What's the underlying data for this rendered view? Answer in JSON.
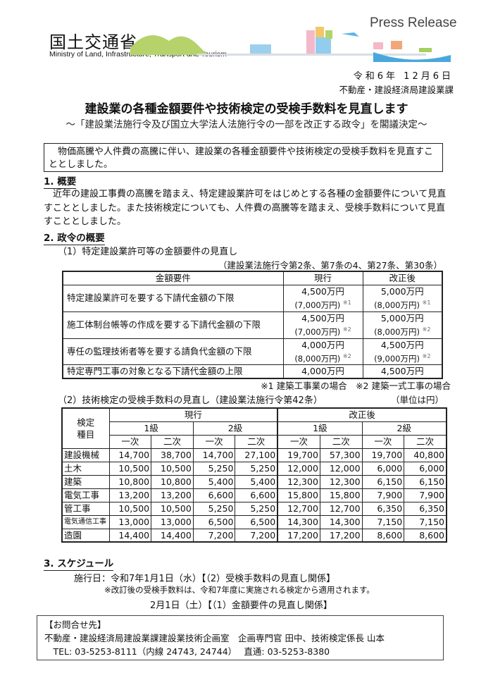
{
  "header": {
    "ministry_jp": "国土交通省",
    "ministry_en": "Ministry of Land, Infrastructure, Transport and Tourism",
    "press_release": "Press Release",
    "date": "令和6年 12月6日",
    "department": "不動産・建設経済局建設業課"
  },
  "title": "建設業の各種金額要件や技術検定の受検手数料を見直します",
  "subtitle": "～「建設業法施行令及び国立大学法人法施行令の一部を改正する政令」を閣議決定～",
  "intro": "　物価高騰や人件費の高騰に伴い、建設業の各種金額要件や技術検定の受検手数料を見直すこととしました。",
  "section1": {
    "heading": "1. 概要",
    "body": "近年の建設工事費の高騰を踏まえ、特定建設業許可をはじめとする各種の金額要件について見直すこととしました。また技術検定についても、人件費の高騰等を踏まえ、受検手数料について見直すこととしました。"
  },
  "section2": {
    "heading": "2. 政令の概要",
    "sub1": "（1）特定建設業許可等の金額要件の見直し",
    "sub1_ref": "（建設業法施行令第2条、第7条の4、第27条、第30条）",
    "table1": {
      "headers": [
        "金額要件",
        "現行",
        "改正後"
      ],
      "rows": [
        {
          "label": "特定建設業許可を要する下請代金額の下限",
          "cur": "4,500万円",
          "cur_sub": "(7,000万円)",
          "cur_note": "※1",
          "new": "5,000万円",
          "new_sub": "(8,000万円)",
          "new_note": "※1"
        },
        {
          "label": "施工体制台帳等の作成を要する下請代金額の下限",
          "cur": "4,500万円",
          "cur_sub": "(7,000万円)",
          "cur_note": "※2",
          "new": "5,000万円",
          "new_sub": "(8,000万円)",
          "new_note": "※2"
        },
        {
          "label": "専任の監理技術者等を要する請負代金額の下限",
          "cur": "4,000万円",
          "cur_sub": "(8,000万円)",
          "cur_note": "※2",
          "new": "4,500万円",
          "new_sub": "(9,000万円)",
          "new_note": "※2"
        },
        {
          "label": "特定専門工事の対象となる下請代金額の上限",
          "cur": "4,000万円",
          "new": "4,500万円"
        }
      ]
    },
    "notes": "※1 建築工事業の場合　※2 建築一式工事の場合",
    "sub2": "（2）技術検定の受検手数料の見直し（建設業法施行令第42条）",
    "unit": "（単位は円）",
    "table2": {
      "corner": "検定\n種目",
      "groups": [
        "現行",
        "改正後"
      ],
      "grades": [
        "1級",
        "2級",
        "1級",
        "2級"
      ],
      "stages": [
        "一次",
        "二次",
        "一次",
        "二次",
        "一次",
        "二次",
        "一次",
        "二次"
      ],
      "rows": [
        {
          "name": "建設機械",
          "values": [
            "14,700",
            "38,700",
            "14,700",
            "27,100",
            "19,700",
            "57,300",
            "19,700",
            "40,800"
          ]
        },
        {
          "name": "土木",
          "values": [
            "10,500",
            "10,500",
            "5,250",
            "5,250",
            "12,000",
            "12,000",
            "6,000",
            "6,000"
          ]
        },
        {
          "name": "建築",
          "values": [
            "10,800",
            "10,800",
            "5,400",
            "5,400",
            "12,300",
            "12,300",
            "6,150",
            "6,150"
          ]
        },
        {
          "name": "電気工事",
          "values": [
            "13,200",
            "13,200",
            "6,600",
            "6,600",
            "15,800",
            "15,800",
            "7,900",
            "7,900"
          ]
        },
        {
          "name": "管工事",
          "values": [
            "10,500",
            "10,500",
            "5,250",
            "5,250",
            "12,700",
            "12,700",
            "6,350",
            "6,350"
          ]
        },
        {
          "name": "電気通信工事",
          "values": [
            "13,000",
            "13,000",
            "6,500",
            "6,500",
            "14,300",
            "14,300",
            "7,150",
            "7,150"
          ]
        },
        {
          "name": "造園",
          "values": [
            "14,400",
            "14,400",
            "7,200",
            "7,200",
            "17,200",
            "17,200",
            "8,600",
            "8,600"
          ]
        }
      ]
    }
  },
  "section3": {
    "heading": "3. スケジュール",
    "line1": "施行日：令和7年1月1日（水）【（2）受検手数料の見直し関係】",
    "note": "※改訂後の受検手数料は、令和7年度に実施される検定から適用されます。",
    "line2": "2月1日（土）【（1）金額要件の見直し関係】"
  },
  "contact": {
    "label": "【お問合せ先】",
    "office": "不動産・建設経済局建設業課建設業技術企画室　企画専門官 田中、技術検定係長 山本",
    "phone": "　TEL: 03-5253-8111（内線 24743, 24744）　 直通: 03-5253-8380"
  }
}
